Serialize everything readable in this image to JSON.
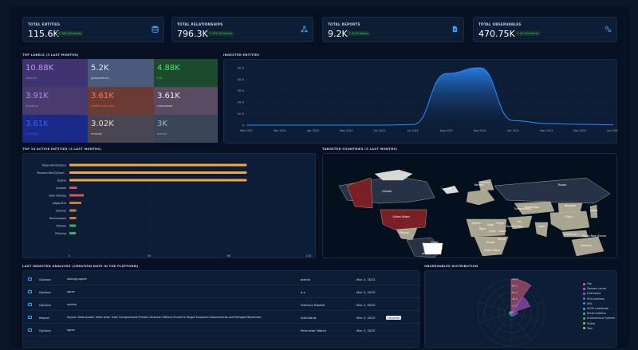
{
  "kpis": [
    {
      "label": "TOTAL ENTITIES",
      "value": "115.6K",
      "delta": "↑ 105",
      "period": "(24 hours)"
    },
    {
      "label": "TOTAL RELATIONSHIPS",
      "value": "796.3K",
      "delta": "↑ 107",
      "period": "(24 hours)"
    },
    {
      "label": "TOTAL REPORTS",
      "value": "9.2K",
      "delta": "↑ 0",
      "period": "(24 hours)"
    },
    {
      "label": "TOTAL OBSERVABLES",
      "value": "470.75K",
      "delta": "↑ 41",
      "period": "(24 hours)"
    }
  ],
  "top_labels": {
    "title": "TOP LABELS (3 LAST MONTHS)",
    "tiles": [
      {
        "value": "10.88K",
        "name": "ransom",
        "bg": "#3f3470",
        "fg": "#c58cff"
      },
      {
        "value": "5.2K",
        "name": "geopolitical...",
        "bg": "#4a5a7d",
        "fg": "#dfe6f5"
      },
      {
        "value": "4.88K",
        "name": "fud",
        "bg": "#1c4a2c",
        "fg": "#4ce07a"
      },
      {
        "value": "3.91K",
        "name": "phishing",
        "bg": "#4a3b6e",
        "fg": "#a98cf2"
      },
      {
        "value": "3.61K",
        "name": "mobile security",
        "bg": "#6b3a35",
        "fg": "#ff7a4a"
      },
      {
        "value": "3.61K",
        "name": "scamware",
        "bg": "#5a4a62",
        "fg": "#f5e8f0"
      },
      {
        "value": "3.61K",
        "name": "malware",
        "bg": "#1a2a88",
        "fg": "#3d5cff"
      },
      {
        "value": "3.02K",
        "name": "emotet",
        "bg": "#4a4550",
        "fg": "#f1d8d0"
      },
      {
        "value": "3K",
        "name": "botnet",
        "bg": "#3a4558",
        "fg": "#a8b4c8"
      }
    ]
  },
  "ingested": {
    "title": "INGESTED ENTITIES",
    "chart_data": {
      "type": "area",
      "x": [
        "Mar 2021",
        "Mar 2021",
        "Apr 2021",
        "May 2021",
        "Jun 2021",
        "Jul 2021",
        "Aug 2021",
        "Sep 2021",
        "Oct 2021",
        "Nov 2021",
        "Dec 2021",
        "Jan 2022"
      ],
      "values": [
        0,
        0,
        0,
        0,
        0,
        500,
        45000,
        50000,
        4000,
        1500,
        800,
        300
      ],
      "ylim": [
        0,
        50000
      ],
      "yticks": [
        "0",
        "10 K",
        "20 K",
        "30 K",
        "40 K",
        "50 K"
      ],
      "color": "#2b8bff"
    }
  },
  "top_active": {
    "title": "TOP 10 ACTIVE ENTITIES (3 LAST MONTHS)",
    "chart_data": {
      "type": "bar",
      "categories": [
        "Trojan-Win32/Zeus",
        "Ransom:Win32/Egre...",
        "Qualys",
        "Android",
        "Dark Renting",
        "AdgarDOS",
        "Shouter",
        "Ransomware",
        "PiShare",
        "Phishing"
      ],
      "values": [
        8900,
        8900,
        8900,
        380,
        730,
        600,
        350,
        350,
        330,
        330
      ],
      "colors": [
        "#f2a93b",
        "#f2a93b",
        "#f2a93b",
        "#e0514f",
        "#e0514f",
        "#d6782a",
        "#d6782a",
        "#d6782a",
        "#35b85a",
        "#35b85a"
      ],
      "xlim": [
        0,
        12000
      ],
      "xticks": [
        "0",
        "4K",
        "8K",
        "12K"
      ]
    }
  },
  "countries": {
    "title": "TARGETED COUNTRIES (3 LAST MONTHS)",
    "labels": [
      "Canada",
      "Iceland",
      "Norway",
      "Finland",
      "Russia",
      "Kazakhstan",
      "Mongolia",
      "China",
      "Japan",
      "United States",
      "Mexico",
      "Turkmenistan",
      "Iran",
      "Algeria",
      "Libya",
      "Egypt",
      "Saudi Arabia",
      "India",
      "Niger",
      "Chad",
      "Sudan",
      "Kenya",
      "Peru",
      "Brazil",
      "Bolivia",
      "Angola",
      "Argentina",
      "Australia",
      "Papua New Guinea",
      "Indonesia",
      "South Africa"
    ]
  },
  "analyses": {
    "title": "LAST INGESTED ANALYSES (CREATION DATE IN THE PLATFORM)",
    "rows": [
      {
        "type": "Opinion",
        "title": "strongly-agree",
        "author": "admin",
        "date": "Mar 2, 2022",
        "tag": ""
      },
      {
        "type": "Opinion",
        "title": "agree",
        "author": "a.s",
        "date": "Mar 2, 2022",
        "tag": ""
      },
      {
        "type": "Opinion",
        "title": "neutral",
        "author": "Shehroz Rashid",
        "date": "Mar 2, 2022",
        "tag": ""
      },
      {
        "type": "Report",
        "title": "Asylum Ambuscade: State Actor Uses Compromised Private Ukrainian Military Emails to Target European Governments and Refugee Movement",
        "author": "AlienVault",
        "date": "Mar 2, 2022",
        "tag": "TLP:WHITE"
      },
      {
        "type": "Opinion",
        "title": "agree",
        "author": "Perimeter Watch",
        "date": "Mar 2, 2022",
        "tag": ""
      }
    ]
  },
  "observables": {
    "title": "OBSERVABLES DISTRIBUTION",
    "chart_data": {
      "type": "polar-area",
      "categories": [
        "File",
        "Domain name",
        "Hostname",
        "IPv4 address",
        "URL",
        "X509 certificate",
        "Email address",
        "Autonomous System",
        "Mutex",
        "Text"
      ],
      "values": [
        100,
        58,
        18,
        14,
        12,
        9,
        7,
        5,
        4,
        3
      ],
      "rticks": [
        "0",
        "20 K",
        "40 K",
        "60 K",
        "80 K",
        "100 K"
      ],
      "colors": [
        "#e2617a",
        "#c35dd9",
        "#a056d2",
        "#7c63e0",
        "#5d7be8",
        "#3ea0d8",
        "#35b4b0",
        "#3fb86f",
        "#97c24a",
        "#d9b33a"
      ]
    }
  }
}
